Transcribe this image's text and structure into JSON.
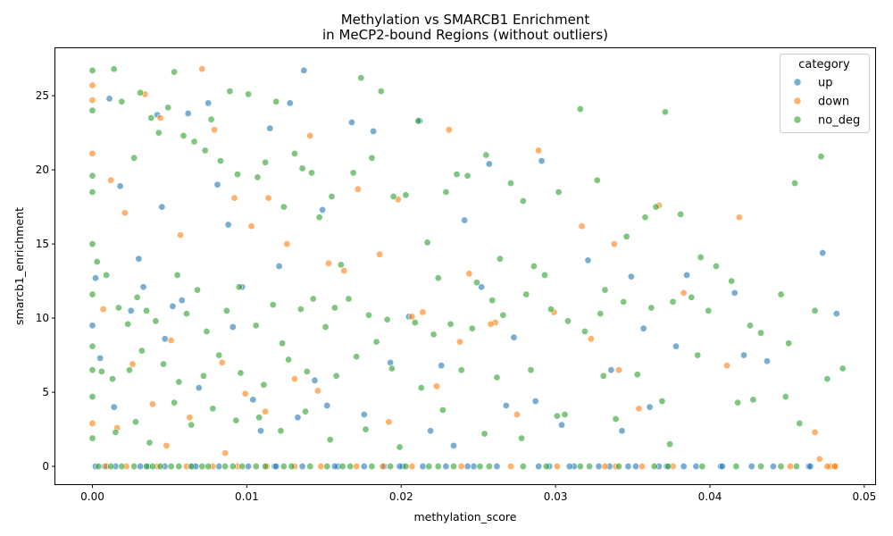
{
  "chart_data": {
    "type": "scatter",
    "title": "Methylation vs SMARCB1 Enrichment\nin MeCP2-bound Regions (without outliers)",
    "xlabel": "methylation_score",
    "ylabel": "smarcb1_enrichment",
    "xlim": [
      -0.0024,
      0.0507
    ],
    "ylim": [
      -1.2,
      28.2
    ],
    "x_ticks": [
      0.0,
      0.01,
      0.02,
      0.03,
      0.04,
      0.05
    ],
    "x_tick_labels": [
      "0.00",
      "0.01",
      "0.02",
      "0.03",
      "0.04",
      "0.05"
    ],
    "y_ticks": [
      0,
      5,
      10,
      15,
      20,
      25
    ],
    "y_tick_labels": [
      "0",
      "5",
      "10",
      "15",
      "20",
      "25"
    ],
    "grid": false,
    "legend": {
      "title": "category",
      "placement": "top-right"
    },
    "series": [
      {
        "name": "up",
        "color": "#1f77b4",
        "x": [
          0.0,
          0.0002,
          0.0011,
          0.0018,
          0.0025,
          0.003,
          0.0042,
          0.0045,
          0.0052,
          0.0062,
          0.0075,
          0.0081,
          0.0088,
          0.0097,
          0.0104,
          0.0115,
          0.0128,
          0.0137,
          0.0149,
          0.0168,
          0.0182,
          0.0193,
          0.0205,
          0.0212,
          0.0226,
          0.0241,
          0.0257,
          0.0273,
          0.0291,
          0.0304,
          0.0321,
          0.0336,
          0.0349,
          0.0361,
          0.0378,
          0.0385,
          0.0416,
          0.0437,
          0.0464,
          0.0473,
          0.0482,
          0.0005,
          0.0014,
          0.0033,
          0.0047,
          0.0058,
          0.0069,
          0.0091,
          0.0109,
          0.0121,
          0.0133,
          0.0144,
          0.0152,
          0.0176,
          0.0189,
          0.0219,
          0.0234,
          0.0252,
          0.0268,
          0.0287,
          0.0312,
          0.0343,
          0.0357,
          0.0391,
          0.0422,
          0.0008,
          0.0036,
          0.0065,
          0.0118,
          0.0159,
          0.0201,
          0.0247,
          0.0296,
          0.0335,
          0.0372,
          0.0407
        ],
        "y": [
          9.5,
          12.7,
          24.8,
          18.9,
          10.5,
          14.0,
          23.7,
          17.5,
          10.8,
          23.8,
          24.5,
          19.0,
          16.3,
          12.1,
          4.5,
          22.8,
          24.5,
          26.7,
          17.3,
          23.2,
          22.6,
          7.0,
          10.1,
          23.3,
          6.8,
          16.6,
          20.4,
          8.7,
          20.6,
          2.8,
          13.9,
          6.5,
          12.8,
          4.0,
          8.1,
          12.9,
          11.7,
          7.1,
          0.0,
          14.4,
          10.3,
          7.3,
          4.0,
          12.1,
          8.6,
          11.2,
          5.3,
          9.4,
          2.4,
          13.5,
          3.3,
          5.8,
          4.1,
          3.5,
          0.0,
          2.4,
          1.4,
          12.1,
          4.1,
          4.4,
          0.0,
          2.4,
          9.3,
          0.0,
          7.5,
          0.0,
          0.0,
          0.0,
          0.0,
          0.0,
          0.0,
          0.0,
          0.0,
          0.0,
          0.0,
          0.0
        ]
      },
      {
        "name": "down",
        "color": "#ff7f0e",
        "x": [
          0.0,
          0.0,
          0.0,
          0.0,
          0.0012,
          0.0021,
          0.0034,
          0.0044,
          0.0057,
          0.0071,
          0.0079,
          0.0092,
          0.0103,
          0.0114,
          0.0126,
          0.0141,
          0.0153,
          0.0172,
          0.0186,
          0.0198,
          0.0214,
          0.0231,
          0.0244,
          0.0261,
          0.0289,
          0.0317,
          0.0338,
          0.0367,
          0.0383,
          0.0419,
          0.0468,
          0.0478,
          0.0007,
          0.0026,
          0.0039,
          0.0051,
          0.0063,
          0.0084,
          0.0099,
          0.0131,
          0.0163,
          0.0207,
          0.0238,
          0.0275,
          0.0323,
          0.0354,
          0.0411,
          0.0016,
          0.0048,
          0.0086,
          0.0112,
          0.0146,
          0.0192,
          0.0223,
          0.0258,
          0.0299,
          0.0341,
          0.0471,
          0.0481
        ],
        "y": [
          25.7,
          24.7,
          21.1,
          2.9,
          19.3,
          17.1,
          25.1,
          23.5,
          15.6,
          26.8,
          22.7,
          18.1,
          16.2,
          18.1,
          15.0,
          22.3,
          13.7,
          18.7,
          14.3,
          18.0,
          10.4,
          22.7,
          13.0,
          9.7,
          21.3,
          16.2,
          15.0,
          17.6,
          11.7,
          16.8,
          2.3,
          0.0,
          10.6,
          6.9,
          4.2,
          8.5,
          3.3,
          7.0,
          4.9,
          5.9,
          13.2,
          10.1,
          8.4,
          3.5,
          8.6,
          3.9,
          6.8,
          2.6,
          1.4,
          0.9,
          3.7,
          5.1,
          3.0,
          5.4,
          9.6,
          10.4,
          6.5,
          0.5,
          0.0
        ]
      },
      {
        "name": "no_deg",
        "color": "#2ca02c",
        "x": [
          0.0,
          0.0,
          0.0,
          0.0,
          0.0,
          0.0,
          0.0,
          0.0,
          0.0,
          0.0,
          0.0014,
          0.0019,
          0.0027,
          0.0031,
          0.0038,
          0.0043,
          0.0049,
          0.0053,
          0.0059,
          0.0066,
          0.0073,
          0.0077,
          0.0083,
          0.0089,
          0.0094,
          0.0101,
          0.0107,
          0.0112,
          0.0119,
          0.0124,
          0.0131,
          0.0136,
          0.0142,
          0.0147,
          0.0155,
          0.0161,
          0.0169,
          0.0174,
          0.0181,
          0.0187,
          0.0195,
          0.0203,
          0.0211,
          0.0217,
          0.0224,
          0.0229,
          0.0236,
          0.0243,
          0.0249,
          0.0255,
          0.0264,
          0.0271,
          0.0279,
          0.0286,
          0.0293,
          0.0302,
          0.0316,
          0.0327,
          0.0332,
          0.0346,
          0.0358,
          0.0365,
          0.0371,
          0.0381,
          0.0394,
          0.0404,
          0.0426,
          0.0446,
          0.0455,
          0.0472,
          0.0486,
          0.0003,
          0.0009,
          0.0017,
          0.0023,
          0.0029,
          0.0035,
          0.0041,
          0.0055,
          0.0061,
          0.0068,
          0.0074,
          0.0087,
          0.0095,
          0.0106,
          0.0117,
          0.0123,
          0.0135,
          0.0143,
          0.0151,
          0.0157,
          0.0166,
          0.0179,
          0.0184,
          0.0191,
          0.0209,
          0.0221,
          0.0232,
          0.0246,
          0.0259,
          0.0266,
          0.0281,
          0.0297,
          0.0308,
          0.0319,
          0.0329,
          0.0344,
          0.0362,
          0.0376,
          0.0388,
          0.0399,
          0.0414,
          0.0433,
          0.0451,
          0.0468,
          0.0476,
          0.0006,
          0.0013,
          0.0024,
          0.0032,
          0.0046,
          0.0056,
          0.0072,
          0.0082,
          0.0096,
          0.0111,
          0.0127,
          0.0139,
          0.0158,
          0.0171,
          0.0194,
          0.0213,
          0.0239,
          0.0262,
          0.0284,
          0.0306,
          0.0331,
          0.0353,
          0.0369,
          0.0392,
          0.0428,
          0.0449,
          0.0015,
          0.0028,
          0.0037,
          0.0053,
          0.0064,
          0.0078,
          0.0093,
          0.0108,
          0.0122,
          0.0138,
          0.0154,
          0.0177,
          0.0199,
          0.0227,
          0.0254,
          0.0278,
          0.0301,
          0.0339,
          0.0374,
          0.0418,
          0.0458
        ],
        "y": [
          26.7,
          24.0,
          19.6,
          18.5,
          15.0,
          11.6,
          8.1,
          6.5,
          4.7,
          1.9,
          26.8,
          24.6,
          20.8,
          25.2,
          23.5,
          22.5,
          24.2,
          26.6,
          22.3,
          21.9,
          21.3,
          23.4,
          20.6,
          25.3,
          19.7,
          25.1,
          19.5,
          20.5,
          24.6,
          17.5,
          21.1,
          20.1,
          19.8,
          16.8,
          18.2,
          13.6,
          19.8,
          26.2,
          20.8,
          25.3,
          18.2,
          18.3,
          23.3,
          15.1,
          12.7,
          18.5,
          19.7,
          19.6,
          12.4,
          21.0,
          14.0,
          19.1,
          17.9,
          13.5,
          12.9,
          18.5,
          24.1,
          19.3,
          11.9,
          15.5,
          16.8,
          17.5,
          23.9,
          17.0,
          14.1,
          13.5,
          9.5,
          11.6,
          19.1,
          20.9,
          6.6,
          13.8,
          12.9,
          10.7,
          9.6,
          11.4,
          10.5,
          9.8,
          12.9,
          10.3,
          11.9,
          9.1,
          10.5,
          12.1,
          9.5,
          10.9,
          8.3,
          10.6,
          11.3,
          9.4,
          10.7,
          11.3,
          10.2,
          8.4,
          9.9,
          9.7,
          8.9,
          9.6,
          9.3,
          11.2,
          10.2,
          11.6,
          10.6,
          9.8,
          9.1,
          10.3,
          11.1,
          10.7,
          11.1,
          11.4,
          10.5,
          12.5,
          9.0,
          8.3,
          10.5,
          5.9,
          6.4,
          5.9,
          6.5,
          7.8,
          6.9,
          5.7,
          6.1,
          7.5,
          6.3,
          5.5,
          7.2,
          6.4,
          6.1,
          7.4,
          6.6,
          5.3,
          6.5,
          6.0,
          6.5,
          3.5,
          6.1,
          6.2,
          4.4,
          7.5,
          4.5,
          4.7,
          2.3,
          3.0,
          1.6,
          4.3,
          2.8,
          3.9,
          3.1,
          3.3,
          2.4,
          3.7,
          1.8,
          2.5,
          1.3,
          3.8,
          2.2,
          1.9,
          3.4,
          3.2,
          1.5,
          4.3,
          2.9
        ]
      }
    ],
    "zero_line": {
      "y": 0,
      "up_x": [
        0.0002,
        0.0015,
        0.0031,
        0.0047,
        0.0067,
        0.0082,
        0.0101,
        0.0119,
        0.0136,
        0.0157,
        0.0176,
        0.0199,
        0.0214,
        0.0229,
        0.0243,
        0.0262,
        0.0289,
        0.0309,
        0.0328,
        0.0347,
        0.0352,
        0.0367,
        0.0383,
        0.0408,
        0.0427,
        0.0441,
        0.0465
      ],
      "down_x": [
        0.0009,
        0.0022,
        0.0042,
        0.0061,
        0.0078,
        0.0094,
        0.0113,
        0.0131,
        0.0148,
        0.0171,
        0.0188,
        0.0207,
        0.0239,
        0.0271,
        0.0301,
        0.0332,
        0.0339,
        0.0356,
        0.0376,
        0.0452,
        0.0476,
        0.0481
      ],
      "no_deg_x": [
        0.0004,
        0.0012,
        0.0019,
        0.0027,
        0.0035,
        0.0039,
        0.0044,
        0.0051,
        0.0056,
        0.0064,
        0.0071,
        0.0075,
        0.0086,
        0.0091,
        0.0097,
        0.0106,
        0.0112,
        0.0124,
        0.0129,
        0.0141,
        0.0152,
        0.0162,
        0.0167,
        0.0181,
        0.0193,
        0.0203,
        0.0218,
        0.0224,
        0.0234,
        0.0251,
        0.0257,
        0.0279,
        0.0294,
        0.0316,
        0.0322,
        0.0341,
        0.0364,
        0.0373,
        0.0395,
        0.0417,
        0.0433,
        0.0446,
        0.0456
      ]
    }
  }
}
